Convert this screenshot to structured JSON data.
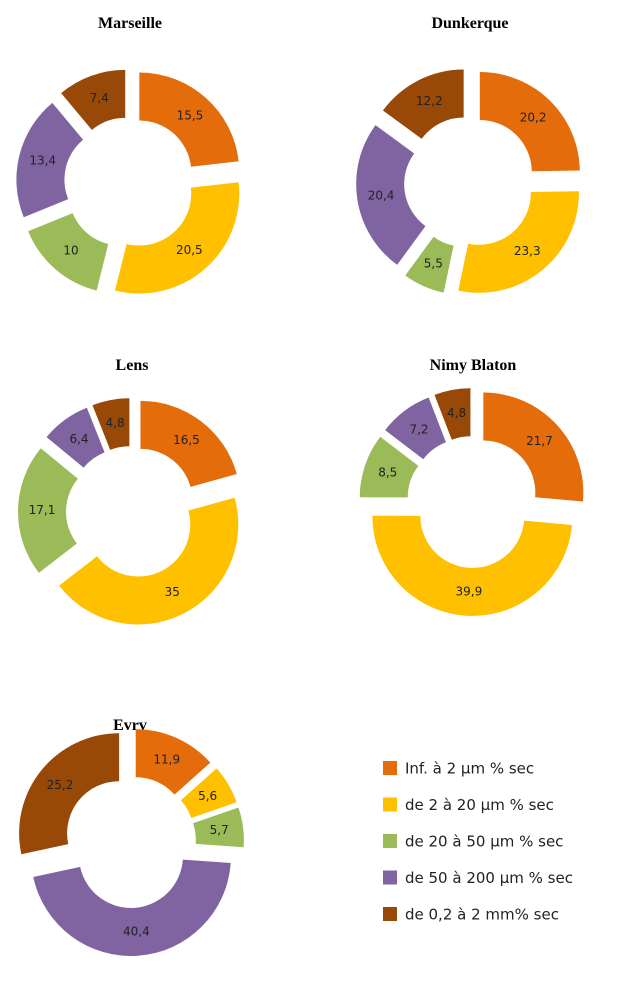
{
  "chart_data": [
    {
      "type": "pie",
      "title": "Marseille",
      "categories": [
        "Inf. à 2 µm % sec",
        "de 2 à 20 µm % sec",
        "de 20 à 50 µm % sec",
        "de 50 à 200 µm % sec",
        "de 0,2 à 2 mm% sec"
      ],
      "colors": [
        "#e46c0a",
        "#ffc000",
        "#9bbb59",
        "#8064a2",
        "#984807"
      ],
      "values": [
        15.5,
        20.5,
        10,
        13.4,
        7.4
      ],
      "value_labels": [
        "15,5",
        "20,5",
        "10",
        "13,4",
        "7,4"
      ]
    },
    {
      "type": "pie",
      "title": "Dunkerque",
      "categories": [
        "Inf. à 2 µm % sec",
        "de 2 à 20 µm % sec",
        "de 20 à 50 µm % sec",
        "de 50 à 200 µm % sec",
        "de 0,2 à 2 mm% sec"
      ],
      "colors": [
        "#e46c0a",
        "#ffc000",
        "#9bbb59",
        "#8064a2",
        "#984807"
      ],
      "values": [
        20.2,
        23.3,
        5.5,
        20.4,
        12.2
      ],
      "value_labels": [
        "20,2",
        "23,3",
        "5,5",
        "20,4",
        "12,2"
      ]
    },
    {
      "type": "pie",
      "title": "Lens",
      "categories": [
        "Inf. à 2 µm % sec",
        "de 2 à 20 µm % sec",
        "de 20 à 50 µm % sec",
        "de 50 à 200 µm % sec",
        "de 0,2 à 2 mm% sec"
      ],
      "colors": [
        "#e46c0a",
        "#ffc000",
        "#9bbb59",
        "#8064a2",
        "#984807"
      ],
      "values": [
        16.5,
        35,
        17.1,
        6.4,
        4.8
      ],
      "value_labels": [
        "16,5",
        "35",
        "17,1",
        "6,4",
        "4,8"
      ]
    },
    {
      "type": "pie",
      "title": "Nimy Blaton",
      "categories": [
        "Inf. à 2 µm % sec",
        "de 2 à 20 µm % sec",
        "de 20 à 50 µm % sec",
        "de 50 à 200 µm % sec",
        "de 0,2 à 2 mm% sec"
      ],
      "colors": [
        "#e46c0a",
        "#ffc000",
        "#9bbb59",
        "#8064a2",
        "#984807"
      ],
      "values": [
        21.7,
        39.9,
        8.5,
        7.2,
        4.8
      ],
      "value_labels": [
        "21,7",
        "39,9",
        "8,5",
        "7,2",
        "4,8"
      ]
    },
    {
      "type": "pie",
      "title": "Evrv",
      "categories": [
        "Inf. à 2 µm % sec",
        "de 2 à 20 µm % sec",
        "de 20 à 50 µm % sec",
        "de 50 à 200 µm % sec",
        "de 0,2 à 2 mm% sec"
      ],
      "colors": [
        "#e46c0a",
        "#ffc000",
        "#9bbb59",
        "#8064a2",
        "#984807"
      ],
      "values": [
        11.9,
        5.6,
        5.7,
        40.4,
        25.2
      ],
      "value_labels": [
        "11,9",
        "5,6",
        "5,7",
        "40,4",
        "25,2"
      ]
    }
  ]
}
